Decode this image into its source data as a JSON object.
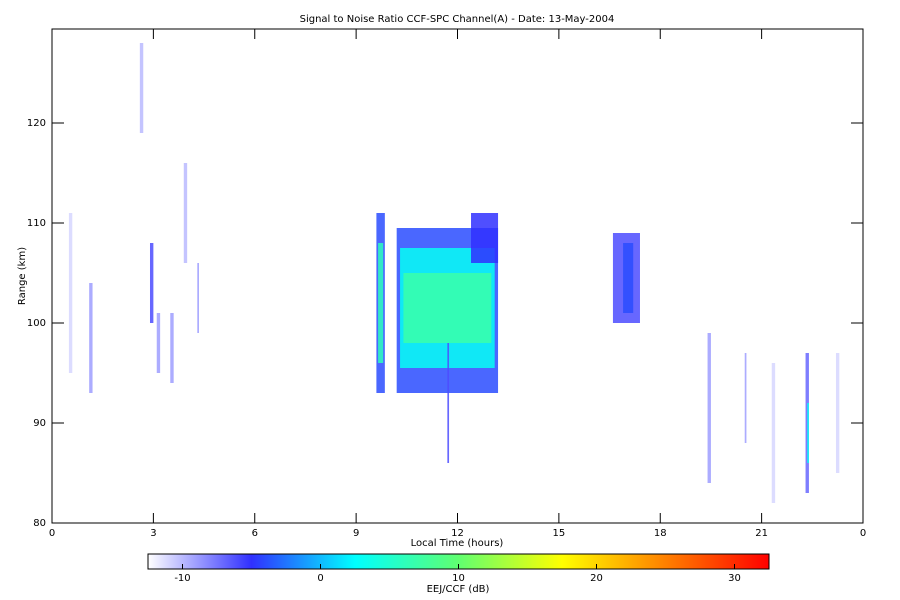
{
  "chart_data": {
    "type": "heatmap",
    "title": "Signal to Noise Ratio CCF-SPC Channel(A) - Date: 13-May-2004",
    "x_label": "Local Time (hours)",
    "y_label": "Range (km)",
    "xlim": [
      0,
      24
    ],
    "xticks": [
      0,
      3,
      6,
      9,
      12,
      15,
      18,
      21,
      {
        "value": 24,
        "label": "0"
      }
    ],
    "ylim": [
      80,
      129.4
    ],
    "yticks": [
      80,
      90,
      100,
      110,
      120
    ],
    "colorbar": {
      "label": "EEJ/CCF (dB)",
      "clim": [
        -12.5,
        32.5
      ],
      "ticks": [
        -10,
        0,
        10,
        20,
        30
      ],
      "colormap": [
        "#ffffff",
        "#3030ff",
        "#00ffff",
        "#60ff70",
        "#ffff00",
        "#ff8000",
        "#ff0000"
      ]
    },
    "cells": [
      {
        "x": [
          10.2,
          13.2
        ],
        "y": [
          93,
          109.5
        ],
        "value": -4
      },
      {
        "x": [
          10.3,
          13.1
        ],
        "y": [
          95.5,
          107.5
        ],
        "value": 3
      },
      {
        "x": [
          10.4,
          13.0
        ],
        "y": [
          98,
          105
        ],
        "value": 7
      },
      {
        "x": [
          12.4,
          13.2
        ],
        "y": [
          106,
          111
        ],
        "value": -5
      },
      {
        "x": [
          9.6,
          9.85
        ],
        "y": [
          93,
          111
        ],
        "value": -4
      },
      {
        "x": [
          9.65,
          9.8
        ],
        "y": [
          96,
          108
        ],
        "value": 6
      },
      {
        "x": [
          16.6,
          17.4
        ],
        "y": [
          100,
          109
        ],
        "value": -6
      },
      {
        "x": [
          16.9,
          17.2
        ],
        "y": [
          101,
          108
        ],
        "value": -4
      },
      {
        "x": [
          2.9,
          3.0
        ],
        "y": [
          100,
          108
        ],
        "value": -6
      },
      {
        "x": [
          2.6,
          2.7
        ],
        "y": [
          119,
          128
        ],
        "value": -10
      },
      {
        "x": [
          3.9,
          4.0
        ],
        "y": [
          106,
          116
        ],
        "value": -10
      },
      {
        "x": [
          3.1,
          3.2
        ],
        "y": [
          95,
          101
        ],
        "value": -9
      },
      {
        "x": [
          3.5,
          3.6
        ],
        "y": [
          94,
          101
        ],
        "value": -9
      },
      {
        "x": [
          4.3,
          4.35
        ],
        "y": [
          99,
          106
        ],
        "value": -9
      },
      {
        "x": [
          1.1,
          1.2
        ],
        "y": [
          93,
          104
        ],
        "value": -9
      },
      {
        "x": [
          0.5,
          0.6
        ],
        "y": [
          95,
          111
        ],
        "value": -11
      },
      {
        "x": [
          11.7,
          11.75
        ],
        "y": [
          86,
          98
        ],
        "value": -6
      },
      {
        "x": [
          19.4,
          19.5
        ],
        "y": [
          84,
          99
        ],
        "value": -9
      },
      {
        "x": [
          22.3,
          22.4
        ],
        "y": [
          83,
          97
        ],
        "value": -7
      },
      {
        "x": [
          22.35,
          22.4
        ],
        "y": [
          86,
          92
        ],
        "value": 3
      },
      {
        "x": [
          20.5,
          20.55
        ],
        "y": [
          88,
          97
        ],
        "value": -9
      },
      {
        "x": [
          21.3,
          21.4
        ],
        "y": [
          82,
          96
        ],
        "value": -11
      },
      {
        "x": [
          23.2,
          23.3
        ],
        "y": [
          85,
          97
        ],
        "value": -11
      }
    ]
  }
}
